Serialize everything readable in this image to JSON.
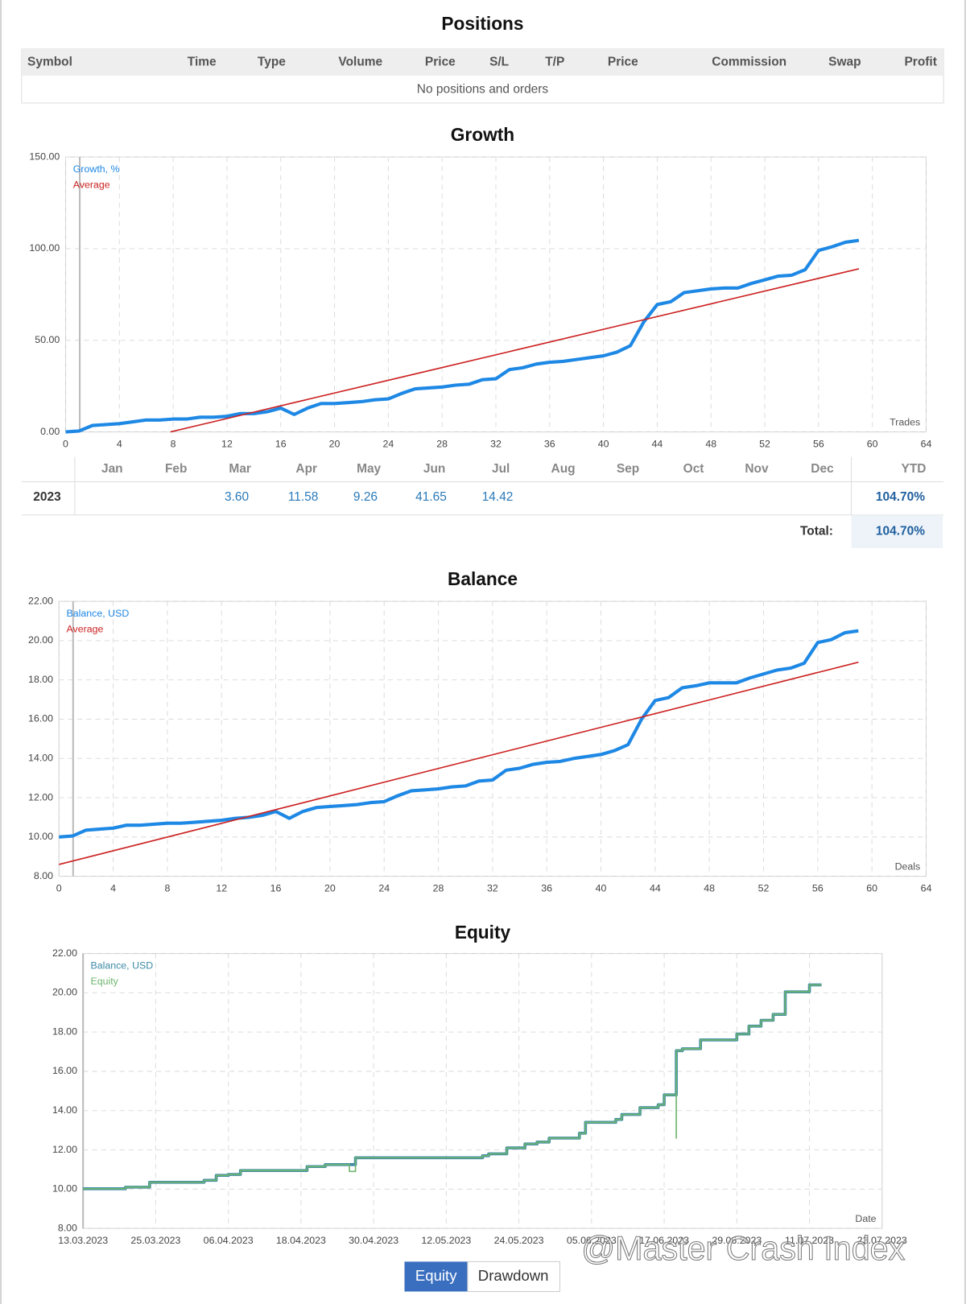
{
  "positions": {
    "title": "Positions",
    "columns": [
      "Symbol",
      "Time",
      "Type",
      "Volume",
      "Price",
      "S/L",
      "T/P",
      "Price",
      "Commission",
      "Swap",
      "Profit"
    ],
    "empty": "No positions and orders"
  },
  "growth_table": {
    "months": [
      "Jan",
      "Feb",
      "Mar",
      "Apr",
      "May",
      "Jun",
      "Jul",
      "Aug",
      "Sep",
      "Oct",
      "Nov",
      "Dec"
    ],
    "ytd_label": "YTD",
    "year": "2023",
    "cells": [
      null,
      null,
      "3.60",
      "11.58",
      "9.26",
      "41.65",
      "14.42",
      null,
      null,
      null,
      null,
      null
    ],
    "ytd": "104.70%",
    "total_label": "Total:",
    "total": "104.70%"
  },
  "chart_data": [
    {
      "type": "line",
      "title": "Growth",
      "x_label": "Trades",
      "xlim": [
        0,
        64
      ],
      "xticks": [
        0,
        4,
        8,
        12,
        16,
        20,
        24,
        28,
        32,
        36,
        40,
        44,
        48,
        52,
        56,
        60,
        64
      ],
      "ylim": [
        0,
        150
      ],
      "yticks": [
        {
          "value": 0,
          "label": "0.00"
        },
        {
          "value": 50,
          "label": "50.00"
        },
        {
          "value": 100,
          "label": "100.00"
        },
        {
          "value": 150,
          "label": "150.00"
        }
      ],
      "grid": true,
      "series": [
        {
          "name": "Growth, %",
          "color": "#1e88e5",
          "x": [
            0,
            1,
            2,
            3,
            4,
            5,
            6,
            7,
            8,
            9,
            10,
            11,
            12,
            13,
            14,
            15,
            16,
            17,
            18,
            19,
            20,
            21,
            22,
            23,
            24,
            25,
            26,
            27,
            28,
            29,
            30,
            31,
            32,
            33,
            34,
            35,
            36,
            37,
            38,
            39,
            40,
            41,
            42,
            43,
            44,
            45,
            46,
            47,
            48,
            49,
            50,
            51,
            52,
            53,
            54,
            55,
            56,
            57,
            58,
            59
          ],
          "values": [
            0,
            0.5,
            3.5,
            4,
            4.5,
            5.5,
            6.5,
            6.5,
            7,
            7,
            8,
            8,
            8.5,
            10,
            10,
            11,
            13,
            9.5,
            13,
            15.5,
            15.5,
            16,
            16.5,
            17.5,
            18,
            21,
            23.5,
            24,
            24.5,
            25.5,
            26,
            28.5,
            29,
            34,
            35,
            37,
            38,
            38.5,
            39.5,
            40.5,
            41.5,
            43.5,
            47,
            60,
            69.5,
            71,
            76,
            77,
            78,
            78.5,
            78.5,
            81,
            83,
            85,
            85.5,
            88.5,
            99,
            101,
            103.5,
            104.5
          ]
        },
        {
          "name": "Average",
          "color": "#cc2222",
          "x": [
            7.8,
            59
          ],
          "values": [
            0,
            89
          ]
        }
      ]
    },
    {
      "type": "line",
      "title": "Balance",
      "x_label": "Deals",
      "xlim": [
        0,
        64
      ],
      "xticks": [
        0,
        4,
        8,
        12,
        16,
        20,
        24,
        28,
        32,
        36,
        40,
        44,
        48,
        52,
        56,
        60,
        64
      ],
      "ylim": [
        8,
        22
      ],
      "yticks": [
        {
          "value": 8,
          "label": "8.00"
        },
        {
          "value": 10,
          "label": "10.00"
        },
        {
          "value": 12,
          "label": "12.00"
        },
        {
          "value": 14,
          "label": "14.00"
        },
        {
          "value": 16,
          "label": "16.00"
        },
        {
          "value": 18,
          "label": "18.00"
        },
        {
          "value": 20,
          "label": "20.00"
        },
        {
          "value": 22,
          "label": "22.00"
        }
      ],
      "grid": true,
      "series": [
        {
          "name": "Balance, USD",
          "color": "#1e88e5",
          "x": [
            0,
            1,
            2,
            3,
            4,
            5,
            6,
            7,
            8,
            9,
            10,
            11,
            12,
            13,
            14,
            15,
            16,
            17,
            18,
            19,
            20,
            21,
            22,
            23,
            24,
            25,
            26,
            27,
            28,
            29,
            30,
            31,
            32,
            33,
            34,
            35,
            36,
            37,
            38,
            39,
            40,
            41,
            42,
            43,
            44,
            45,
            46,
            47,
            48,
            49,
            50,
            51,
            52,
            53,
            54,
            55,
            56,
            57,
            58,
            59
          ],
          "values": [
            10,
            10.05,
            10.35,
            10.4,
            10.45,
            10.6,
            10.6,
            10.65,
            10.7,
            10.7,
            10.75,
            10.8,
            10.85,
            10.95,
            11,
            11.1,
            11.3,
            10.95,
            11.3,
            11.5,
            11.55,
            11.6,
            11.65,
            11.75,
            11.8,
            12.1,
            12.35,
            12.4,
            12.45,
            12.55,
            12.6,
            12.85,
            12.9,
            13.4,
            13.5,
            13.7,
            13.8,
            13.85,
            14,
            14.1,
            14.2,
            14.4,
            14.7,
            16,
            16.95,
            17.1,
            17.6,
            17.7,
            17.85,
            17.85,
            17.85,
            18.1,
            18.3,
            18.5,
            18.6,
            18.85,
            19.9,
            20.05,
            20.4,
            20.5
          ]
        },
        {
          "name": "Average",
          "color": "#cc2222",
          "x": [
            0,
            59
          ],
          "values": [
            8.6,
            18.9
          ]
        }
      ]
    },
    {
      "type": "step",
      "title": "Equity",
      "x_label": "Date",
      "xlim": [
        "13.03.2023",
        "23.07.2023"
      ],
      "xticks": [
        "13.03.2023",
        "25.03.2023",
        "06.04.2023",
        "18.04.2023",
        "30.04.2023",
        "12.05.2023",
        "24.05.2023",
        "05.06.2023",
        "17.06.2023",
        "29.06.2023",
        "11.07.2023",
        "23.07.2023"
      ],
      "ylim": [
        8,
        22
      ],
      "yticks": [
        {
          "value": 8,
          "label": "8.00"
        },
        {
          "value": 10,
          "label": "10.00"
        },
        {
          "value": 12,
          "label": "12.00"
        },
        {
          "value": 14,
          "label": "14.00"
        },
        {
          "value": 16,
          "label": "16.00"
        },
        {
          "value": 18,
          "label": "18.00"
        },
        {
          "value": 20,
          "label": "20.00"
        },
        {
          "value": 22,
          "label": "22.00"
        }
      ],
      "grid": true,
      "series": [
        {
          "name": "Balance, USD",
          "color": "#3d8aa6",
          "x": [
            "13.03.2023",
            "20.03.2023",
            "24.03.2023",
            "02.04.2023",
            "04.04.2023",
            "06.04.2023",
            "08.04.2023",
            "19.04.2023",
            "22.04.2023",
            "27.04.2023",
            "18.05.2023",
            "19.05.2023",
            "22.05.2023",
            "25.05.2023",
            "27.05.2023",
            "29.05.2023",
            "03.06.2023",
            "04.06.2023",
            "09.06.2023",
            "10.06.2023",
            "13.06.2023",
            "16.06.2023",
            "17.06.2023",
            "19.06.2023",
            "20.06.2023",
            "23.06.2023",
            "29.06.2023",
            "01.07.2023",
            "03.07.2023",
            "05.07.2023",
            "07.07.2023",
            "11.07.2023",
            "13.07.2023"
          ],
          "values": [
            10.02,
            10.1,
            10.35,
            10.45,
            10.7,
            10.75,
            10.95,
            11.15,
            11.25,
            11.6,
            11.7,
            11.8,
            12.1,
            12.3,
            12.4,
            12.6,
            12.85,
            13.4,
            13.55,
            13.8,
            14.15,
            14.3,
            14.8,
            17.05,
            17.15,
            17.6,
            17.9,
            18.3,
            18.6,
            18.9,
            20.05,
            20.4,
            20.4
          ]
        },
        {
          "name": "Equity",
          "color": "#6fb56f",
          "x": [
            "13.03.2023",
            "20.03.2023",
            "24.03.2023",
            "02.04.2023",
            "04.04.2023",
            "06.04.2023",
            "08.04.2023",
            "19.04.2023",
            "22.04.2023",
            "26.04.2023",
            "27.04.2023",
            "18.05.2023",
            "19.05.2023",
            "22.05.2023",
            "25.05.2023",
            "27.05.2023",
            "29.05.2023",
            "03.06.2023",
            "04.06.2023",
            "09.06.2023",
            "10.06.2023",
            "13.06.2023",
            "16.06.2023",
            "17.06.2023",
            "19.06.2023",
            "19.06.2023",
            "20.06.2023",
            "23.06.2023",
            "29.06.2023",
            "01.07.2023",
            "03.07.2023",
            "05.07.2023",
            "07.07.2023",
            "11.07.2023",
            "13.07.2023"
          ],
          "values": [
            10.02,
            10.1,
            10.35,
            10.45,
            10.7,
            10.75,
            10.95,
            11.15,
            11.25,
            10.9,
            11.6,
            11.7,
            11.8,
            12.1,
            12.3,
            12.4,
            12.6,
            12.85,
            13.4,
            13.55,
            13.8,
            14.15,
            14.3,
            14.8,
            12.6,
            17.05,
            17.15,
            17.6,
            17.9,
            18.3,
            18.6,
            18.9,
            20.05,
            20.4,
            20.4
          ]
        }
      ]
    }
  ],
  "tabs": [
    "Equity",
    "Drawdown"
  ],
  "watermark": "@Master Crash Index"
}
